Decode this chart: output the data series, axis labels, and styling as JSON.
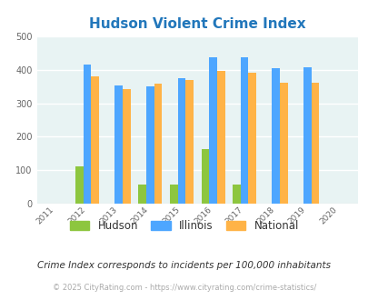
{
  "title": "Hudson Violent Crime Index",
  "years": [
    2012,
    2013,
    2014,
    2015,
    2016,
    2017,
    2018,
    2019
  ],
  "hudson": [
    112,
    0,
    57,
    58,
    163,
    58,
    0,
    0
  ],
  "illinois": [
    416,
    352,
    350,
    375,
    436,
    436,
    405,
    408
  ],
  "national": [
    380,
    342,
    357,
    368,
    395,
    390,
    361,
    361
  ],
  "hudson_color": "#8dc63f",
  "illinois_color": "#4da6ff",
  "national_color": "#ffb347",
  "bg_color": "#e8f3f3",
  "xlim": [
    2010.4,
    2020.6
  ],
  "ylim": [
    0,
    500
  ],
  "yticks": [
    0,
    100,
    200,
    300,
    400,
    500
  ],
  "bar_width": 0.25,
  "subtitle": "Crime Index corresponds to incidents per 100,000 inhabitants",
  "footer": "© 2025 CityRating.com - https://www.cityrating.com/crime-statistics/",
  "title_color": "#2277bb",
  "subtitle_color": "#333333",
  "footer_color": "#aaaaaa",
  "legend_labels": [
    "Hudson",
    "Illinois",
    "National"
  ]
}
